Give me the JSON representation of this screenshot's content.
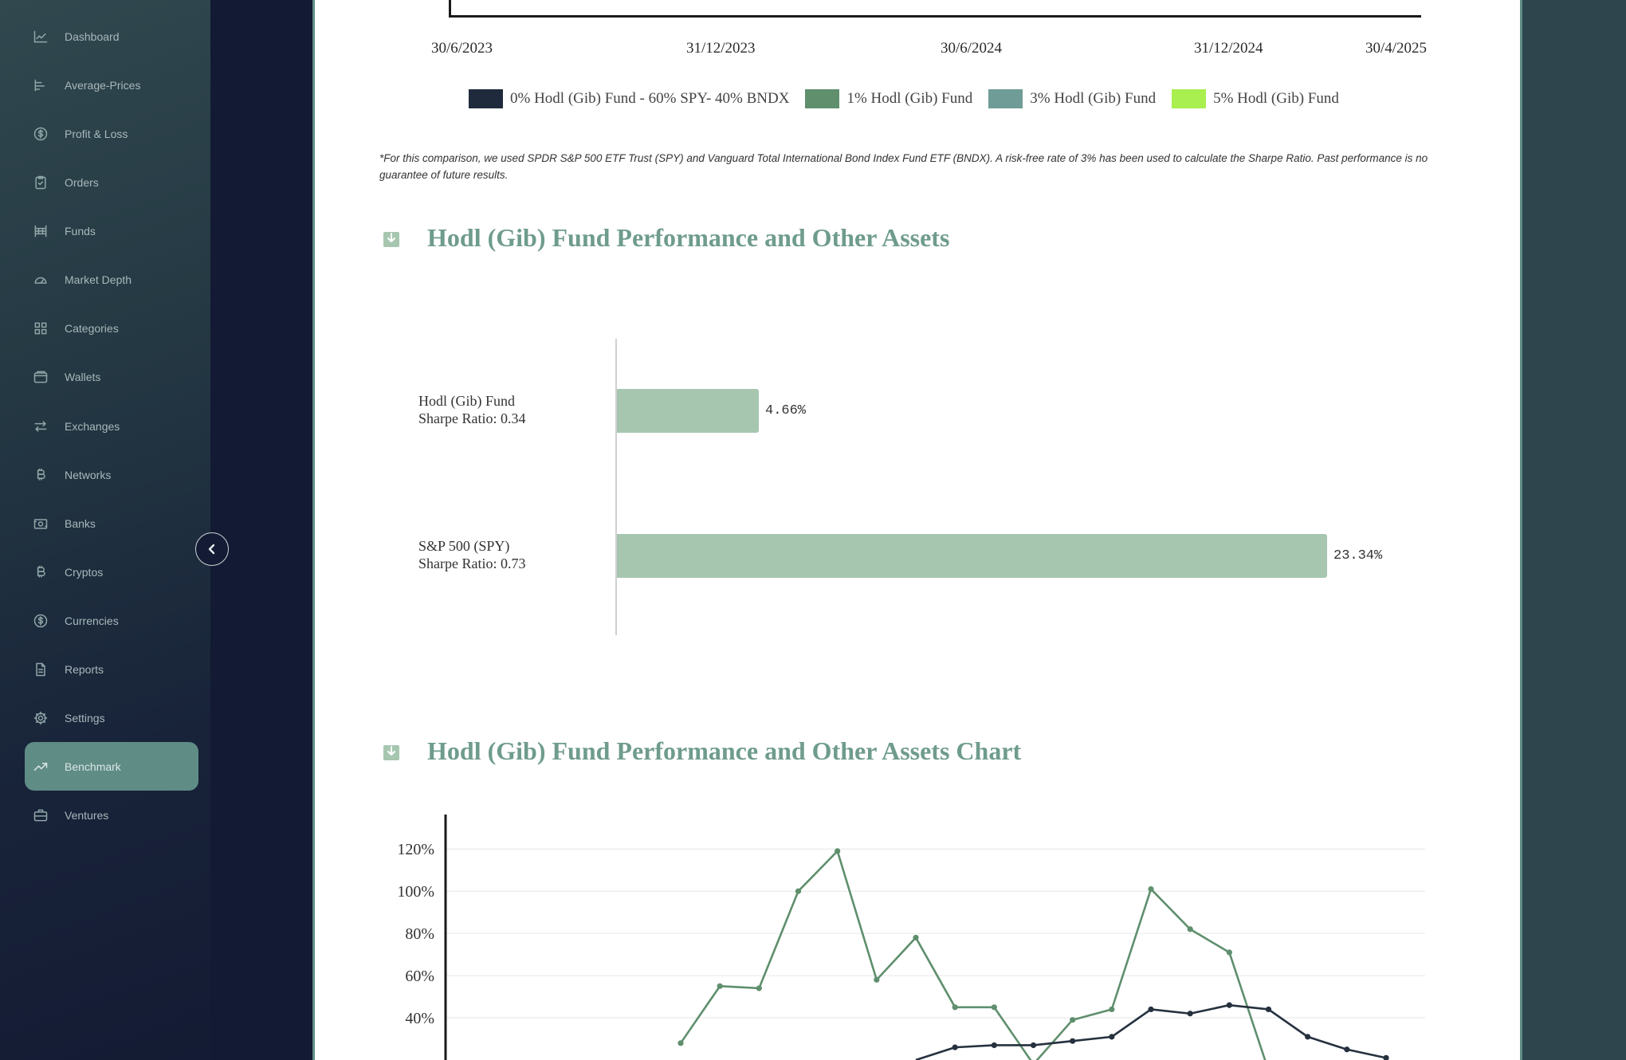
{
  "sidebar": {
    "items": [
      {
        "label": "Dashboard",
        "icon": "chart-line-icon"
      },
      {
        "label": "Average-Prices",
        "icon": "bar-chart-icon"
      },
      {
        "label": "Profit & Loss",
        "icon": "dollar-circle-icon"
      },
      {
        "label": "Orders",
        "icon": "clipboard-check-icon"
      },
      {
        "label": "Funds",
        "icon": "funds-icon"
      },
      {
        "label": "Market Depth",
        "icon": "gauge-icon"
      },
      {
        "label": "Categories",
        "icon": "grid-icon"
      },
      {
        "label": "Wallets",
        "icon": "wallet-icon"
      },
      {
        "label": "Exchanges",
        "icon": "arrows-swap-icon"
      },
      {
        "label": "Networks",
        "icon": "bitcoin-icon"
      },
      {
        "label": "Banks",
        "icon": "banknote-icon"
      },
      {
        "label": "Cryptos",
        "icon": "bitcoin-icon"
      },
      {
        "label": "Currencies",
        "icon": "dollar-circle-icon"
      },
      {
        "label": "Reports",
        "icon": "document-icon"
      },
      {
        "label": "Settings",
        "icon": "gear-icon"
      },
      {
        "label": "Benchmark",
        "icon": "trending-up-icon",
        "active": true
      },
      {
        "label": "Ventures",
        "icon": "briefcase-icon"
      }
    ]
  },
  "top_chart": {
    "x_ticks": [
      "30/6/2023",
      "31/12/2023",
      "30/6/2024",
      "31/12/2024",
      "30/4/2025"
    ],
    "legend": [
      {
        "label": "0% Hodl (Gib) Fund  - 60% SPY- 40% BNDX",
        "color": "#1f2b3d"
      },
      {
        "label": "1% Hodl (Gib) Fund",
        "color": "#5f8f6d"
      },
      {
        "label": "3% Hodl (Gib) Fund",
        "color": "#6f9c96"
      },
      {
        "label": "5% Hodl (Gib) Fund",
        "color": "#a8ef4f"
      }
    ]
  },
  "footnote": "*For this comparison, we used SPDR S&P 500 ETF Trust (SPY) and Vanguard Total International Bond Index Fund ETF (BNDX). A risk-free rate of 3% has been used to calculate the Sharpe Ratio. Past performance is no guarantee of future results.",
  "section1": {
    "title": "Hodl (Gib) Fund Performance and Other Assets"
  },
  "section2": {
    "title": "Hodl (Gib) Fund Performance and Other Assets Chart"
  },
  "bar_chart": {
    "type": "bar",
    "orientation": "horizontal",
    "categories": [
      {
        "line1": "Hodl (Gib) Fund",
        "line2": "Sharpe Ratio: 0.34"
      },
      {
        "line1": "S&P 500 (SPY)",
        "line2": "Sharpe Ratio: 0.73"
      }
    ],
    "values": [
      4.66,
      23.34
    ],
    "value_labels": [
      "4.66%",
      "23.34%"
    ],
    "color": "#a6c6b0"
  },
  "chart_data": {
    "type": "line",
    "y_ticks": [
      "120%",
      "100%",
      "80%",
      "60%",
      "40%"
    ],
    "ylim": [
      20,
      125
    ],
    "x_count": 25,
    "series": [
      {
        "color": "#5f8f6d",
        "values": [
          null,
          null,
          null,
          null,
          null,
          null,
          28,
          55,
          54,
          100,
          119,
          58,
          78,
          45,
          45,
          18,
          39,
          44,
          101,
          82,
          71,
          15,
          null,
          null,
          null
        ]
      },
      {
        "color": "#26313f",
        "values": [
          null,
          null,
          null,
          null,
          null,
          null,
          null,
          null,
          null,
          null,
          null,
          null,
          20,
          26,
          27,
          27,
          29,
          31,
          44,
          42,
          46,
          44,
          31,
          25,
          21
        ]
      }
    ]
  }
}
